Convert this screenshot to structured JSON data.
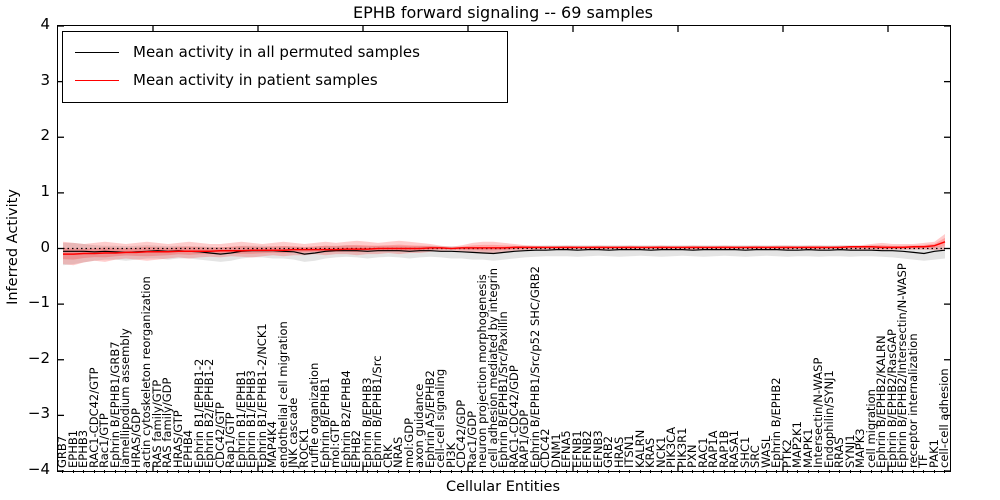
{
  "chart_data": {
    "type": "line",
    "title": "EPHB forward signaling -- 69 samples",
    "xlabel": "Cellular Entities",
    "ylabel": "Inferred Activity",
    "ylim": [
      -4,
      4
    ],
    "yticks": [
      4,
      3,
      2,
      1,
      0,
      -1,
      -2,
      -3,
      -4
    ],
    "grid": false,
    "legend_position": "upper left",
    "zero_line": true,
    "categories": [
      "GRB7",
      "EPHB1",
      "EPHB3",
      "RAC1-CDC42/GTP",
      "Rac1/GTP",
      "Ephrin B/EPHB1/GRB7",
      "lamellipodium assembly",
      "HRAS/GDP",
      "actin cytoskeleton reorganization",
      "RAS family/GTP",
      "RAS family/GDP",
      "HRAS/GTP",
      "EPHB4",
      "Ephrin B1/EPHB1-2",
      "Ephrin B2/EPHB1-2",
      "CDC42/GTP",
      "Rap1/GTP",
      "Ephrin B1/EPHB1",
      "Ephrin B1/EPHB3",
      "Ephrin B1/EPHB1-2/NCK1",
      "MAP4K4",
      "endothelial cell migration",
      "JNK cascade",
      "ROCK1",
      "ruffle organization",
      "Ephrin B/EPHB1",
      "mol:GTP",
      "Ephrin B2/EPHB4",
      "EPHB2",
      "Ephrin B/EPHB3",
      "Ephrin B/EPHB1/Src",
      "CRK",
      "NRAS",
      "mol:GDP",
      "axon guidance",
      "Ephrin A5/EPHB2",
      "cell-cell signaling",
      "PI3K",
      "CDC42/GDP",
      "Rac1/GDP",
      "neuron projection morphogenesis",
      "cell adhesion mediated by integrin",
      "Ephrin B/EPHB1/Src/Paxillin",
      "RAC1-CDC42/GDP",
      "RAP1/GDP",
      "Ephrin B/EPHB1/Src/p52 SHC/GRB2",
      "CDC42",
      "DNM1",
      "EFNA5",
      "EFNB1",
      "EFNB2",
      "EFNB3",
      "GRB2",
      "HRAS",
      "ITSN1",
      "KALRN",
      "KRAS",
      "NCK1",
      "PIK3CA",
      "PIK3R1",
      "PXN",
      "RAC1",
      "RAP1A",
      "RAP1B",
      "RASA1",
      "SHC1",
      "SRC",
      "WASL",
      "Ephrin B/EPHB2",
      "PTK2",
      "MAP2K1",
      "MAPK1",
      "Intersectin/N-WASP",
      "Endophilin/SYNJ1",
      "RRAS",
      "SYNJ1",
      "MAPK3",
      "cell migration",
      "Ephrin B/EPHB2/KALRN",
      "Ephrin B/EPHB2/RasGAP",
      "Ephrin B/EPHB2/Intersectin/N-WASP",
      "receptor internalization",
      "TF",
      "PAK1",
      "cell-cell adhesion"
    ],
    "series": [
      {
        "name": "Mean activity in all permuted samples",
        "color": "#000000",
        "band_color": "#555555",
        "band_alpha": 0.16,
        "band_inner": false,
        "values": [
          -0.05,
          -0.05,
          -0.05,
          -0.06,
          -0.05,
          -0.06,
          -0.07,
          -0.06,
          -0.05,
          -0.04,
          -0.05,
          -0.04,
          -0.05,
          -0.06,
          -0.08,
          -0.1,
          -0.08,
          -0.05,
          -0.04,
          -0.04,
          -0.04,
          -0.05,
          -0.06,
          -0.1,
          -0.08,
          -0.05,
          -0.04,
          -0.04,
          -0.04,
          -0.05,
          -0.04,
          -0.04,
          -0.04,
          -0.05,
          -0.04,
          -0.04,
          -0.05,
          -0.05,
          -0.06,
          -0.07,
          -0.08,
          -0.09,
          -0.07,
          -0.05,
          -0.04,
          -0.03,
          -0.03,
          -0.02,
          -0.02,
          -0.03,
          -0.02,
          -0.02,
          -0.03,
          -0.02,
          -0.02,
          -0.02,
          -0.03,
          -0.02,
          -0.02,
          -0.02,
          -0.03,
          -0.02,
          -0.02,
          -0.02,
          -0.02,
          -0.03,
          -0.02,
          -0.02,
          -0.02,
          -0.03,
          -0.03,
          -0.02,
          -0.03,
          -0.03,
          -0.02,
          -0.03,
          -0.03,
          -0.03,
          -0.04,
          -0.04,
          -0.05,
          -0.07,
          -0.09,
          -0.05,
          -0.03
        ],
        "band_upper": [
          0.1,
          0.1,
          0.08,
          0.06,
          0.05,
          0.05,
          0.04,
          0.05,
          0.06,
          0.05,
          0.04,
          0.05,
          0.04,
          0.04,
          0.03,
          0.02,
          0.03,
          0.05,
          0.05,
          0.05,
          0.04,
          0.04,
          0.03,
          0.02,
          0.03,
          0.05,
          0.05,
          0.06,
          0.05,
          0.04,
          0.05,
          0.05,
          0.05,
          0.04,
          0.05,
          0.05,
          0.04,
          0.04,
          0.03,
          0.03,
          0.02,
          0.02,
          0.03,
          0.04,
          0.05,
          0.05,
          0.06,
          0.06,
          0.06,
          0.06,
          0.06,
          0.06,
          0.06,
          0.06,
          0.06,
          0.06,
          0.06,
          0.06,
          0.06,
          0.06,
          0.06,
          0.06,
          0.06,
          0.06,
          0.06,
          0.06,
          0.06,
          0.06,
          0.06,
          0.06,
          0.06,
          0.06,
          0.06,
          0.06,
          0.06,
          0.06,
          0.05,
          0.05,
          0.05,
          0.04,
          0.04,
          0.03,
          0.02,
          0.03,
          0.04
        ],
        "band_lower": [
          -0.3,
          -0.28,
          -0.25,
          -0.22,
          -0.2,
          -0.2,
          -0.22,
          -0.2,
          -0.18,
          -0.18,
          -0.2,
          -0.18,
          -0.18,
          -0.2,
          -0.22,
          -0.24,
          -0.22,
          -0.18,
          -0.16,
          -0.16,
          -0.18,
          -0.18,
          -0.2,
          -0.24,
          -0.22,
          -0.18,
          -0.16,
          -0.15,
          -0.16,
          -0.18,
          -0.16,
          -0.15,
          -0.16,
          -0.18,
          -0.16,
          -0.15,
          -0.16,
          -0.18,
          -0.18,
          -0.2,
          -0.2,
          -0.22,
          -0.2,
          -0.18,
          -0.16,
          -0.15,
          -0.14,
          -0.14,
          -0.14,
          -0.15,
          -0.14,
          -0.13,
          -0.14,
          -0.15,
          -0.14,
          -0.13,
          -0.14,
          -0.15,
          -0.14,
          -0.13,
          -0.14,
          -0.15,
          -0.14,
          -0.13,
          -0.14,
          -0.15,
          -0.14,
          -0.13,
          -0.14,
          -0.15,
          -0.14,
          -0.14,
          -0.15,
          -0.14,
          -0.14,
          -0.15,
          -0.14,
          -0.14,
          -0.15,
          -0.16,
          -0.18,
          -0.2,
          -0.22,
          -0.2,
          -0.18
        ]
      },
      {
        "name": "Mean activity in patient samples",
        "color": "#ff0000",
        "band_color": "#ff0000",
        "band_alpha": 0.2,
        "band_inner": true,
        "values": [
          -0.1,
          -0.1,
          -0.09,
          -0.09,
          -0.08,
          -0.08,
          -0.07,
          -0.07,
          -0.06,
          -0.06,
          -0.06,
          -0.05,
          -0.05,
          -0.05,
          -0.05,
          -0.04,
          -0.04,
          -0.04,
          -0.03,
          -0.03,
          -0.03,
          -0.03,
          -0.02,
          -0.02,
          -0.02,
          -0.02,
          -0.02,
          -0.01,
          -0.01,
          -0.01,
          0.0,
          0.0,
          0.0,
          0.0,
          0.0,
          0.01,
          0.01,
          0.0,
          0.01,
          0.01,
          0.01,
          0.01,
          0.01,
          0.02,
          0.02,
          0.02,
          0.02,
          0.02,
          0.02,
          0.02,
          0.02,
          0.02,
          0.02,
          0.02,
          0.02,
          0.02,
          0.02,
          0.02,
          0.02,
          0.02,
          0.02,
          0.02,
          0.02,
          0.02,
          0.02,
          0.02,
          0.02,
          0.02,
          0.02,
          0.02,
          0.02,
          0.02,
          0.02,
          0.02,
          0.02,
          0.03,
          0.03,
          0.03,
          0.02,
          0.02,
          0.02,
          0.03,
          0.03,
          0.05,
          0.12
        ],
        "band_upper": [
          0.12,
          0.1,
          0.08,
          0.1,
          0.12,
          0.1,
          0.08,
          0.1,
          0.12,
          0.1,
          0.08,
          0.1,
          0.12,
          0.1,
          0.08,
          0.08,
          0.1,
          0.12,
          0.1,
          0.08,
          0.1,
          0.12,
          0.1,
          0.08,
          0.1,
          0.12,
          0.1,
          0.12,
          0.14,
          0.12,
          0.1,
          0.12,
          0.14,
          0.12,
          0.1,
          0.08,
          0.05,
          0.03,
          0.06,
          0.1,
          0.12,
          0.12,
          0.1,
          0.08,
          0.06,
          0.05,
          0.04,
          0.04,
          0.05,
          0.04,
          0.04,
          0.05,
          0.04,
          0.04,
          0.05,
          0.04,
          0.04,
          0.05,
          0.04,
          0.04,
          0.05,
          0.04,
          0.04,
          0.05,
          0.04,
          0.04,
          0.05,
          0.04,
          0.05,
          0.05,
          0.04,
          0.05,
          0.05,
          0.04,
          0.05,
          0.05,
          0.06,
          0.08,
          0.1,
          0.08,
          0.08,
          0.08,
          0.1,
          0.12,
          0.26
        ],
        "band_lower": [
          -0.28,
          -0.3,
          -0.25,
          -0.22,
          -0.24,
          -0.2,
          -0.18,
          -0.2,
          -0.22,
          -0.2,
          -0.18,
          -0.16,
          -0.18,
          -0.16,
          -0.15,
          -0.16,
          -0.14,
          -0.15,
          -0.16,
          -0.14,
          -0.12,
          -0.14,
          -0.12,
          -0.12,
          -0.1,
          -0.12,
          -0.1,
          -0.1,
          -0.12,
          -0.1,
          -0.1,
          -0.08,
          -0.1,
          -0.08,
          -0.08,
          -0.06,
          -0.04,
          -0.03,
          -0.05,
          -0.06,
          -0.08,
          -0.08,
          -0.06,
          -0.04,
          -0.03,
          -0.02,
          -0.01,
          -0.01,
          -0.02,
          -0.01,
          -0.01,
          -0.02,
          -0.01,
          -0.01,
          -0.02,
          -0.01,
          -0.01,
          -0.02,
          -0.01,
          -0.01,
          -0.02,
          -0.01,
          -0.01,
          -0.02,
          -0.01,
          -0.01,
          -0.02,
          -0.01,
          -0.01,
          -0.02,
          -0.01,
          -0.01,
          -0.02,
          -0.01,
          -0.01,
          -0.02,
          -0.02,
          -0.03,
          -0.03,
          -0.02,
          -0.02,
          -0.02,
          -0.02,
          -0.03,
          -0.02
        ]
      }
    ]
  }
}
